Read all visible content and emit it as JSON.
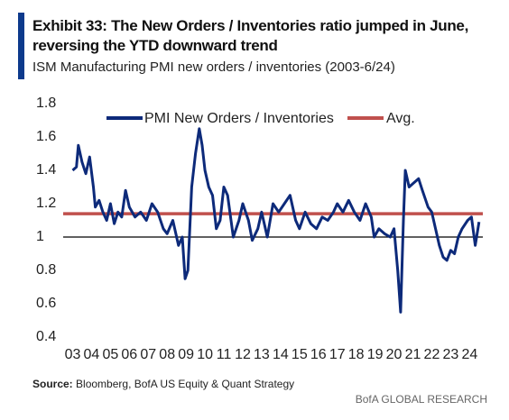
{
  "chart_data": {
    "type": "line",
    "title": "Exhibit 33: The New Orders / Inventories ratio jumped in June, reversing the YTD downward trend",
    "subtitle": "ISM Manufacturing PMI new orders / inventories (2003-6/24)",
    "source_label": "Source:",
    "source": "Bloomberg, BofA US Equity & Quant Strategy",
    "footer": "BofA GLOBAL RESEARCH",
    "x": [
      2003.0,
      2003.2,
      2003.3,
      2003.5,
      2003.7,
      2003.9,
      2004.1,
      2004.2,
      2004.4,
      2004.6,
      2004.8,
      2005.0,
      2005.2,
      2005.4,
      2005.6,
      2005.8,
      2006.0,
      2006.3,
      2006.6,
      2006.9,
      2007.2,
      2007.5,
      2007.8,
      2008.0,
      2008.3,
      2008.6,
      2008.8,
      2008.95,
      2009.1,
      2009.3,
      2009.5,
      2009.7,
      2009.85,
      2010.0,
      2010.2,
      2010.4,
      2010.6,
      2010.8,
      2011.0,
      2011.2,
      2011.5,
      2011.8,
      2012.0,
      2012.3,
      2012.5,
      2012.8,
      2013.0,
      2013.3,
      2013.6,
      2013.9,
      2014.2,
      2014.5,
      2014.8,
      2015.0,
      2015.3,
      2015.6,
      2015.9,
      2016.2,
      2016.5,
      2016.8,
      2017.0,
      2017.3,
      2017.6,
      2017.9,
      2018.2,
      2018.5,
      2018.8,
      2018.95,
      2019.2,
      2019.5,
      2019.8,
      2020.0,
      2020.2,
      2020.35,
      2020.5,
      2020.6,
      2020.8,
      2021.0,
      2021.3,
      2021.5,
      2021.8,
      2022.0,
      2022.2,
      2022.4,
      2022.6,
      2022.8,
      2023.0,
      2023.2,
      2023.4,
      2023.6,
      2023.9,
      2024.1,
      2024.3,
      2024.5
    ],
    "series": [
      {
        "name": "PMI New Orders / Inventories",
        "color": "#0d2a7a",
        "values": [
          1.4,
          1.42,
          1.55,
          1.45,
          1.38,
          1.48,
          1.3,
          1.18,
          1.22,
          1.15,
          1.1,
          1.2,
          1.08,
          1.15,
          1.12,
          1.28,
          1.18,
          1.12,
          1.15,
          1.1,
          1.2,
          1.15,
          1.05,
          1.02,
          1.1,
          0.95,
          1.0,
          0.75,
          0.8,
          1.3,
          1.5,
          1.65,
          1.55,
          1.4,
          1.3,
          1.25,
          1.05,
          1.1,
          1.3,
          1.25,
          1.0,
          1.1,
          1.2,
          1.1,
          0.98,
          1.05,
          1.15,
          1.0,
          1.2,
          1.15,
          1.2,
          1.25,
          1.1,
          1.05,
          1.15,
          1.08,
          1.05,
          1.12,
          1.1,
          1.15,
          1.2,
          1.15,
          1.22,
          1.15,
          1.1,
          1.2,
          1.12,
          1.0,
          1.05,
          1.02,
          1.0,
          1.05,
          0.8,
          0.55,
          1.1,
          1.4,
          1.3,
          1.32,
          1.35,
          1.28,
          1.18,
          1.15,
          1.05,
          0.95,
          0.88,
          0.86,
          0.92,
          0.9,
          1.0,
          1.05,
          1.1,
          1.12,
          0.95,
          1.09
        ]
      },
      {
        "name": "Avg.",
        "color": "#c0504d",
        "value": 1.14
      }
    ],
    "reference_line": 1,
    "xlim": [
      2002.5,
      2024.7
    ],
    "ylim": [
      0.4,
      1.8
    ],
    "xticks": [
      {
        "value": 2003,
        "label": "03"
      },
      {
        "value": 2004,
        "label": "04"
      },
      {
        "value": 2005,
        "label": "05"
      },
      {
        "value": 2006,
        "label": "06"
      },
      {
        "value": 2007,
        "label": "07"
      },
      {
        "value": 2008,
        "label": "08"
      },
      {
        "value": 2009,
        "label": "09"
      },
      {
        "value": 2010,
        "label": "10"
      },
      {
        "value": 2011,
        "label": "11"
      },
      {
        "value": 2012,
        "label": "12"
      },
      {
        "value": 2013,
        "label": "13"
      },
      {
        "value": 2014,
        "label": "14"
      },
      {
        "value": 2015,
        "label": "15"
      },
      {
        "value": 2016,
        "label": "16"
      },
      {
        "value": 2017,
        "label": "17"
      },
      {
        "value": 2018,
        "label": "18"
      },
      {
        "value": 2019,
        "label": "19"
      },
      {
        "value": 2020,
        "label": "20"
      },
      {
        "value": 2021,
        "label": "21"
      },
      {
        "value": 2022,
        "label": "22"
      },
      {
        "value": 2023,
        "label": "23"
      },
      {
        "value": 2024,
        "label": "24"
      }
    ],
    "yticks": [
      0.4,
      0.6,
      0.8,
      1,
      1.2,
      1.4,
      1.6,
      1.8
    ],
    "grid": false
  }
}
